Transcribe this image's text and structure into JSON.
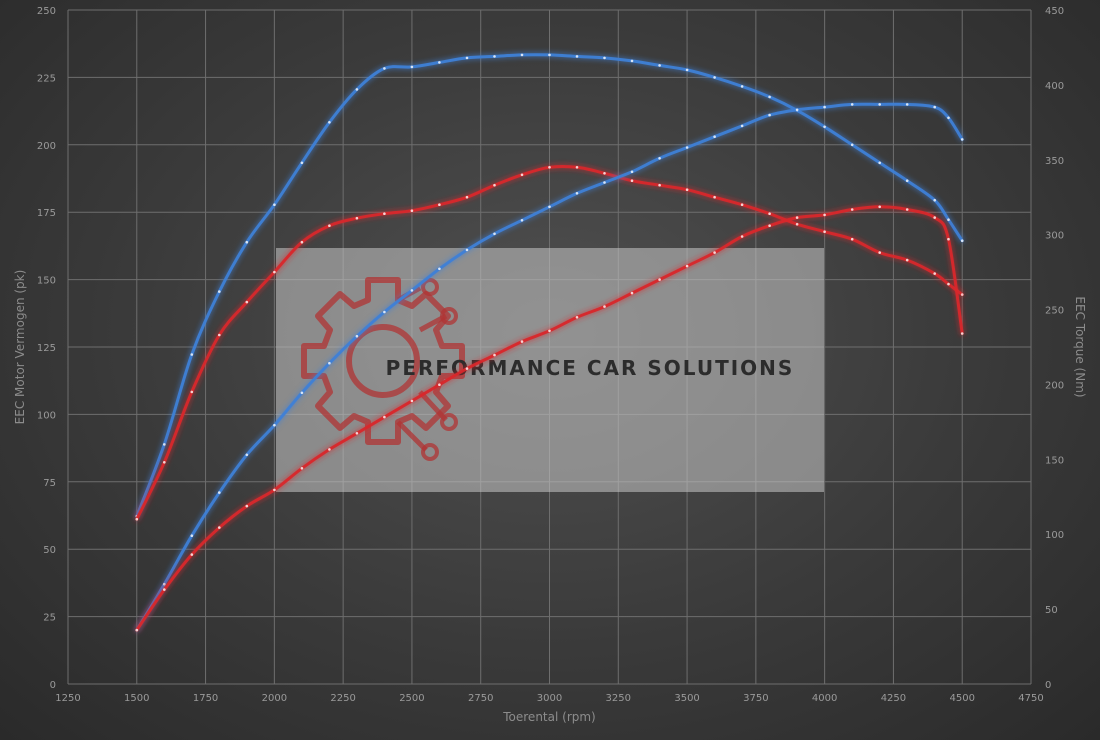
{
  "chart_data": {
    "type": "line",
    "title": "",
    "xlabel": "Toerental (rpm)",
    "ylabel": "EEC Motor Vermogen (pk)",
    "y2label": "EEC Torque (Nm)",
    "xlim": [
      1250,
      4750
    ],
    "ylim": [
      0,
      250
    ],
    "y2lim": [
      0,
      450
    ],
    "xticks": [
      1250,
      1500,
      1750,
      2000,
      2250,
      2500,
      2750,
      3000,
      3250,
      3500,
      3750,
      4000,
      4250,
      4500,
      4750
    ],
    "yticks": [
      0,
      25,
      50,
      75,
      100,
      125,
      150,
      175,
      200,
      225,
      250
    ],
    "y2ticks": [
      0,
      50,
      100,
      150,
      200,
      250,
      300,
      350,
      400,
      450
    ],
    "grid": true,
    "legend": "none",
    "colors": {
      "tuned": "#3f7fd6",
      "stock": "#d8282c"
    },
    "series": [
      {
        "key": "tuned-torque",
        "axis": "y2",
        "color": "tuned",
        "x": [
          1500,
          1600,
          1700,
          1800,
          1900,
          2000,
          2100,
          2200,
          2300,
          2400,
          2500,
          2600,
          2700,
          2800,
          2900,
          3000,
          3100,
          3200,
          3300,
          3400,
          3500,
          3600,
          3700,
          3800,
          3900,
          4000,
          4100,
          4200,
          4300,
          4400,
          4450,
          4500
        ],
        "y": [
          112,
          160,
          220,
          262,
          295,
          320,
          348,
          375,
          397,
          411,
          412,
          415,
          418,
          419,
          420,
          420,
          419,
          418,
          416,
          413,
          410,
          405,
          399,
          392,
          383,
          372,
          360,
          348,
          336,
          323,
          310,
          296
        ]
      },
      {
        "key": "stock-torque",
        "axis": "y2",
        "color": "stock",
        "x": [
          1500,
          1600,
          1700,
          1800,
          1900,
          2000,
          2100,
          2200,
          2300,
          2400,
          2500,
          2600,
          2700,
          2800,
          2900,
          3000,
          3100,
          3200,
          3300,
          3400,
          3500,
          3600,
          3700,
          3800,
          3900,
          4000,
          4100,
          4200,
          4300,
          4400,
          4450,
          4500
        ],
        "y": [
          110,
          148,
          195,
          233,
          255,
          275,
          295,
          306,
          311,
          314,
          316,
          320,
          325,
          333,
          340,
          345,
          345,
          341,
          336,
          333,
          330,
          325,
          320,
          314,
          307,
          302,
          297,
          288,
          283,
          274,
          267,
          260
        ]
      },
      {
        "key": "tuned-power",
        "axis": "y",
        "color": "tuned",
        "x": [
          1500,
          1600,
          1700,
          1800,
          1900,
          2000,
          2100,
          2200,
          2300,
          2400,
          2500,
          2600,
          2700,
          2800,
          2900,
          3000,
          3100,
          3200,
          3300,
          3400,
          3500,
          3600,
          3700,
          3800,
          3900,
          4000,
          4100,
          4200,
          4300,
          4400,
          4450,
          4500
        ],
        "y": [
          20,
          37,
          55,
          71,
          85,
          96,
          108,
          119,
          129,
          138,
          146,
          154,
          161,
          167,
          172,
          177,
          182,
          186,
          190,
          195,
          199,
          203,
          207,
          211,
          213,
          214,
          215,
          215,
          215,
          214,
          210,
          202
        ]
      },
      {
        "key": "stock-power",
        "axis": "y",
        "color": "stock",
        "x": [
          1500,
          1600,
          1700,
          1800,
          1900,
          2000,
          2100,
          2200,
          2300,
          2400,
          2500,
          2600,
          2700,
          2800,
          2900,
          3000,
          3100,
          3200,
          3300,
          3400,
          3500,
          3600,
          3700,
          3800,
          3900,
          4000,
          4100,
          4200,
          4300,
          4400,
          4450,
          4500
        ],
        "y": [
          20,
          35,
          48,
          58,
          66,
          72,
          80,
          87,
          93,
          99,
          105,
          111,
          117,
          122,
          127,
          131,
          136,
          140,
          145,
          150,
          155,
          160,
          166,
          170,
          173,
          174,
          176,
          177,
          176,
          173,
          165,
          130
        ]
      }
    ]
  },
  "watermark": {
    "text": "PERFORMANCE CAR SOLUTIONS",
    "icon": "gear-circuit-logo-icon"
  }
}
